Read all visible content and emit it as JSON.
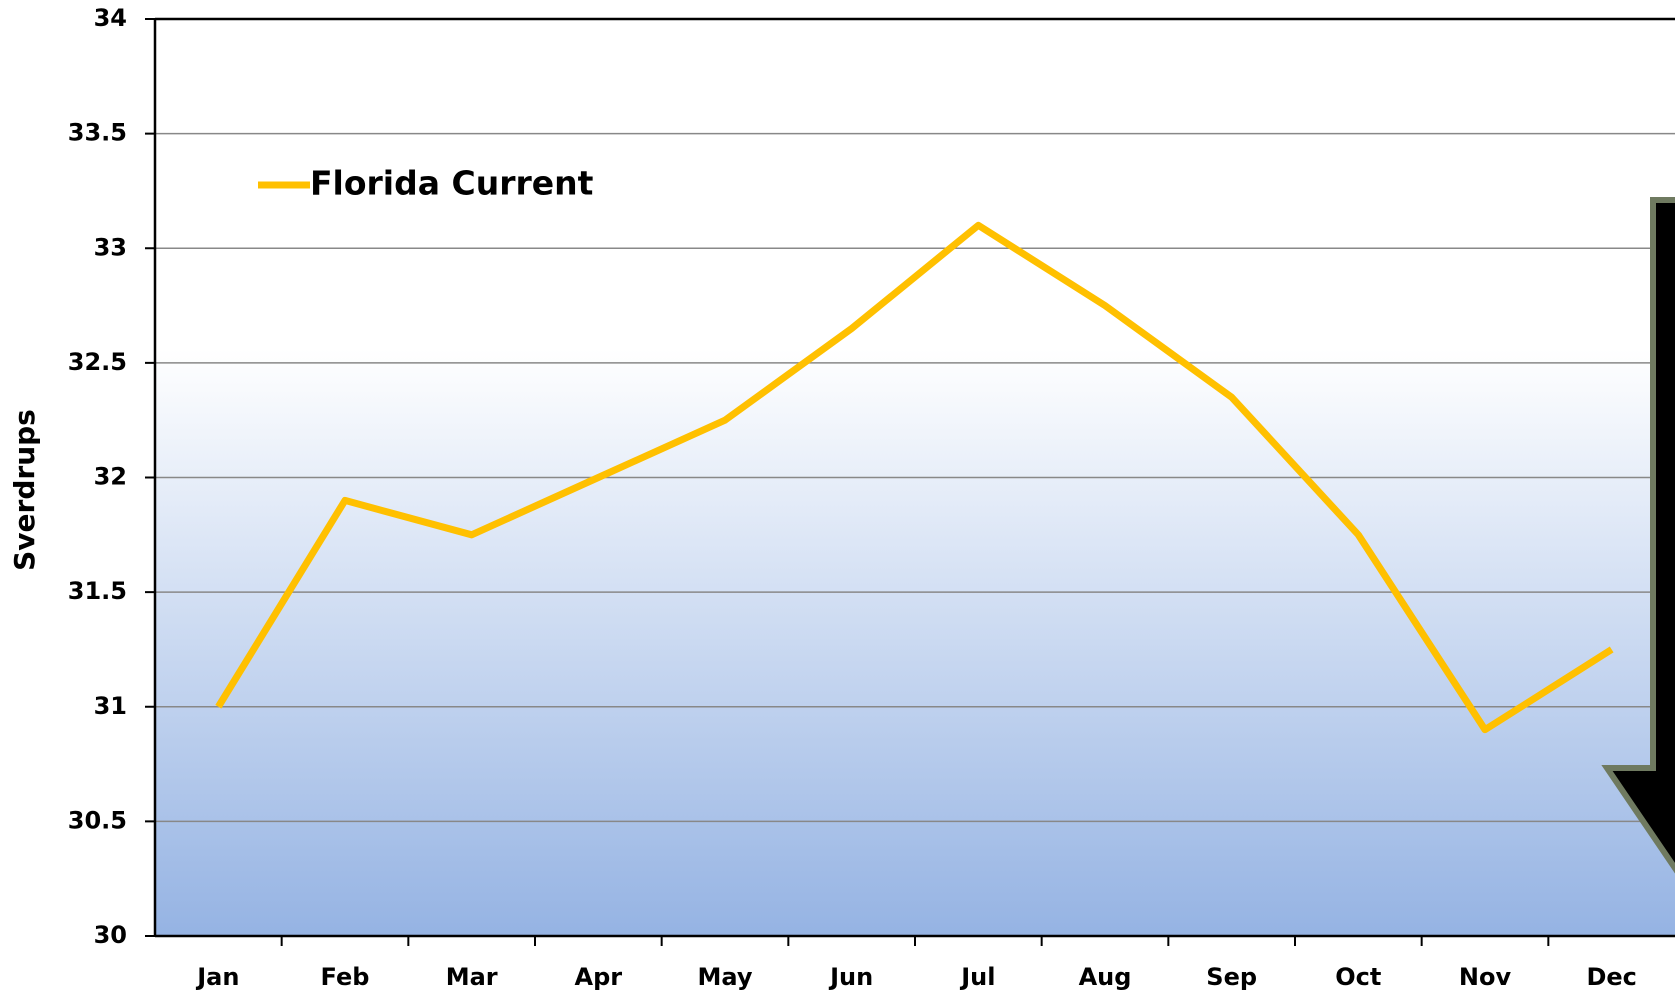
{
  "chart_data": {
    "type": "line",
    "y_label": "Sverdrups",
    "categories": [
      "Jan",
      "Feb",
      "Mar",
      "Apr",
      "May",
      "Jun",
      "Jul",
      "Aug",
      "Sep",
      "Oct",
      "Nov",
      "Dec"
    ],
    "series": [
      {
        "name": "Florida Current",
        "color": "#ffc000",
        "values": [
          31.0,
          31.9,
          31.75,
          32.0,
          32.25,
          32.65,
          33.1,
          32.75,
          32.35,
          31.75,
          30.9,
          31.25
        ]
      }
    ],
    "ylim": [
      30,
      34
    ],
    "yticks": [
      30,
      30.5,
      31,
      31.5,
      32,
      32.5,
      33,
      33.5,
      34
    ],
    "grid": true,
    "legend": "top-left"
  }
}
